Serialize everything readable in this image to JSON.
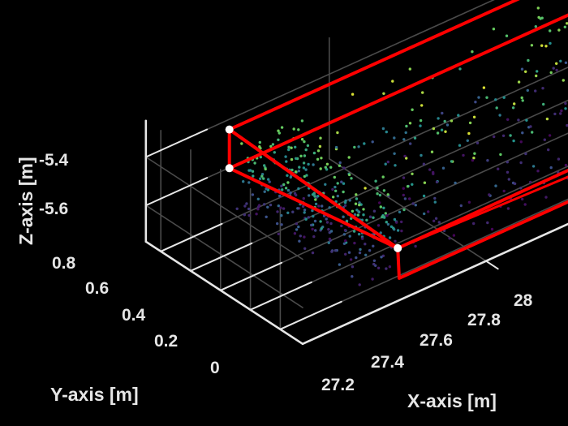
{
  "chart_data": {
    "type": "scatter",
    "view": "3d",
    "title": "",
    "xlabel": "X-axis [m]",
    "ylabel": "Y-axis [m]",
    "zlabel": "Z-axis [m]",
    "xlim": [
      27.05,
      28.05
    ],
    "ylim": [
      -0.15,
      0.9
    ],
    "zlim": [
      -5.75,
      -5.25
    ],
    "x_ticks": [
      "27.2",
      "27.4",
      "27.6",
      "27.8",
      "28"
    ],
    "y_ticks": [
      "0",
      "0.2",
      "0.4",
      "0.6",
      "0.8"
    ],
    "z_ticks": [
      "-5.6",
      "-5.4"
    ],
    "grid": true,
    "background": "#000000",
    "axis_color": "#e6e6e6",
    "grid_color": "#4a4a4a",
    "colormap": "viridis (colored by height)",
    "point_count_approx": 1100,
    "bounding_box": {
      "color": "#ff0000",
      "vertex_color": "#ffffff",
      "corners_plotted": [
        {
          "x": 27.1,
          "y": 0.75,
          "z": -5.34
        },
        {
          "x": 27.82,
          "y": 0.75,
          "z": -5.34
        },
        {
          "x": 27.92,
          "y": -0.05,
          "z": -5.58
        },
        {
          "x": 27.14,
          "y": -0.05,
          "z": -5.6
        },
        {
          "x": 27.1,
          "y": 0.75,
          "z": -5.5
        },
        {
          "x": 27.82,
          "y": 0.75,
          "z": -5.5
        }
      ]
    }
  }
}
